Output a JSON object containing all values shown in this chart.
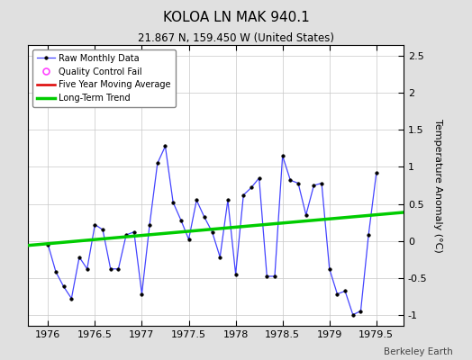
{
  "title": "KOLOA LN MAK 940.1",
  "subtitle": "21.867 N, 159.450 W (United States)",
  "ylabel": "Temperature Anomaly (°C)",
  "watermark": "Berkeley Earth",
  "xlim": [
    1975.79,
    1979.79
  ],
  "ylim": [
    -1.15,
    2.65
  ],
  "xticks": [
    1976,
    1976.5,
    1977,
    1977.5,
    1978,
    1978.5,
    1979,
    1979.5
  ],
  "yticks": [
    -1,
    -0.5,
    0,
    0.5,
    1,
    1.5,
    2,
    2.5
  ],
  "background_color": "#e0e0e0",
  "plot_background": "#ffffff",
  "raw_x": [
    1976.0,
    1976.0833,
    1976.1667,
    1976.25,
    1976.3333,
    1976.4167,
    1976.5,
    1976.5833,
    1976.6667,
    1976.75,
    1976.8333,
    1976.9167,
    1977.0,
    1977.0833,
    1977.1667,
    1977.25,
    1977.3333,
    1977.4167,
    1977.5,
    1977.5833,
    1977.6667,
    1977.75,
    1977.8333,
    1977.9167,
    1978.0,
    1978.0833,
    1978.1667,
    1978.25,
    1978.3333,
    1978.4167,
    1978.5,
    1978.5833,
    1978.6667,
    1978.75,
    1978.8333,
    1978.9167,
    1979.0,
    1979.0833,
    1979.1667,
    1979.25,
    1979.3333,
    1979.4167,
    1979.5
  ],
  "raw_y": [
    -0.05,
    -0.42,
    -0.62,
    -0.78,
    -0.22,
    -0.38,
    0.22,
    0.15,
    -0.38,
    -0.38,
    0.08,
    0.12,
    -0.72,
    0.22,
    1.05,
    1.28,
    0.52,
    0.28,
    0.02,
    0.55,
    0.32,
    0.12,
    -0.22,
    0.55,
    -0.45,
    0.62,
    0.72,
    0.85,
    -0.48,
    -0.48,
    1.15,
    0.82,
    0.78,
    0.35,
    0.75,
    0.78,
    -0.38,
    -0.72,
    -0.68,
    -1.0,
    -0.95,
    0.08,
    0.92
  ],
  "trend_x": [
    1975.79,
    1979.79
  ],
  "trend_y": [
    -0.062,
    0.385
  ],
  "line_color": "#4444ff",
  "marker_color": "#000000",
  "trend_color": "#00cc00",
  "qc_color": "#ff44ff",
  "mavg_color": "#dd0000",
  "legend_loc": "upper left"
}
